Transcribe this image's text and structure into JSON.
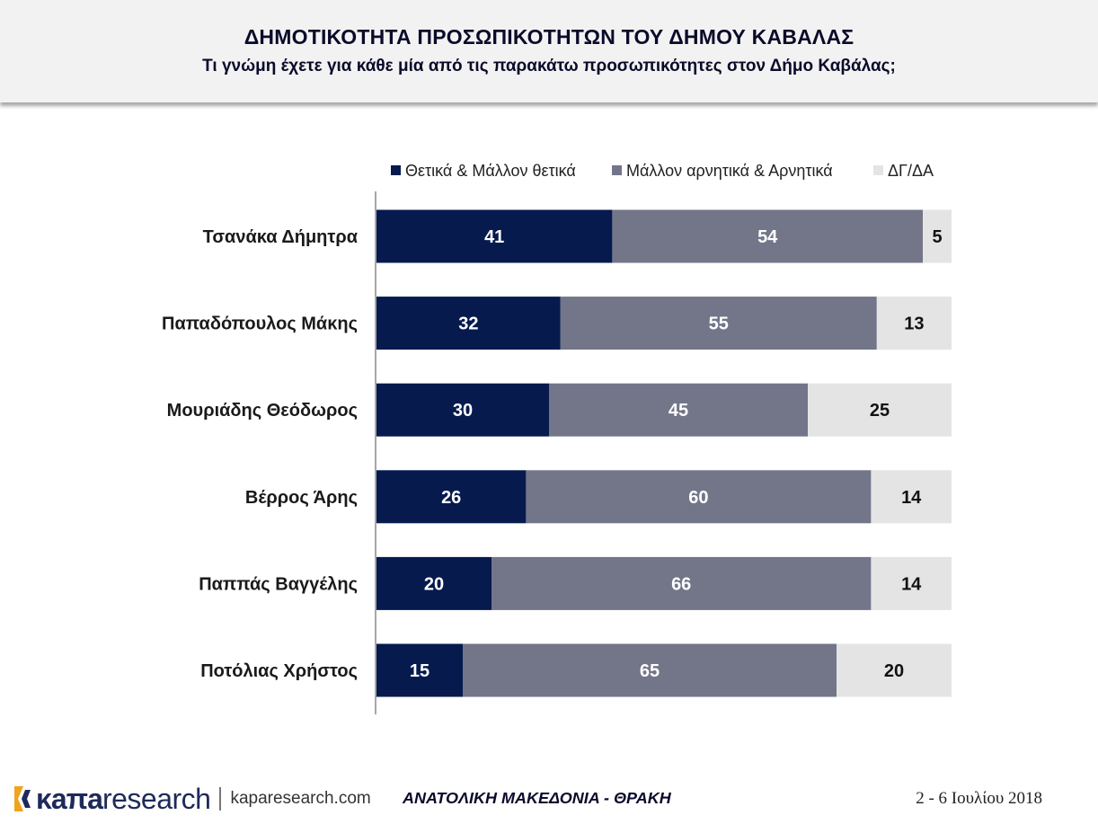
{
  "header": {
    "title": "ΔΗΜΟΤΙΚΟΤΗΤΑ ΠΡΟΣΩΠΙΚΟΤΗΤΩΝ ΤΟΥ ΔΗΜΟΥ ΚΑΒΑΛΑΣ",
    "subtitle": "Τι γνώμη έχετε για κάθε μία από τις παρακάτω προσωπικότητες στον Δήμο Καβάλας;"
  },
  "chart_data": {
    "type": "bar",
    "orientation": "horizontal",
    "stacked": true,
    "categories": [
      "Τσανάκα Δήμητρα",
      "Παπαδόπουλος Μάκης",
      "Μουριάδης Θεόδωρος",
      "Βέρρος Άρης",
      "Παππάς Βαγγέλης",
      "Ποτόλιας Χρήστος"
    ],
    "series": [
      {
        "name": "Θετικά & Μάλλον θετικά",
        "values": [
          41,
          32,
          30,
          26,
          20,
          15
        ],
        "color": "#061a4e",
        "label_color": "#ffffff"
      },
      {
        "name": "Μάλλον αρνητικά & Αρνητικά",
        "values": [
          54,
          55,
          45,
          60,
          66,
          65
        ],
        "color": "#737589",
        "label_color": "#ffffff"
      },
      {
        "name": "ΔΓ/ΔΑ",
        "values": [
          5,
          13,
          25,
          14,
          14,
          20
        ],
        "color": "#e4e4e4",
        "label_color": "#111111"
      }
    ],
    "xlim": [
      0,
      100
    ],
    "legend": "top",
    "grid": false
  },
  "footer": {
    "logo_kapa": "κaπa",
    "logo_research": "research",
    "url": "kaparesearch.com",
    "region": "ΑΝΑΤΟΛΙΚΗ ΜΑΚΕΔΟΝΙΑ - ΘΡΑΚΗ",
    "date": "2 - 6 Ιουλίου 2018"
  }
}
